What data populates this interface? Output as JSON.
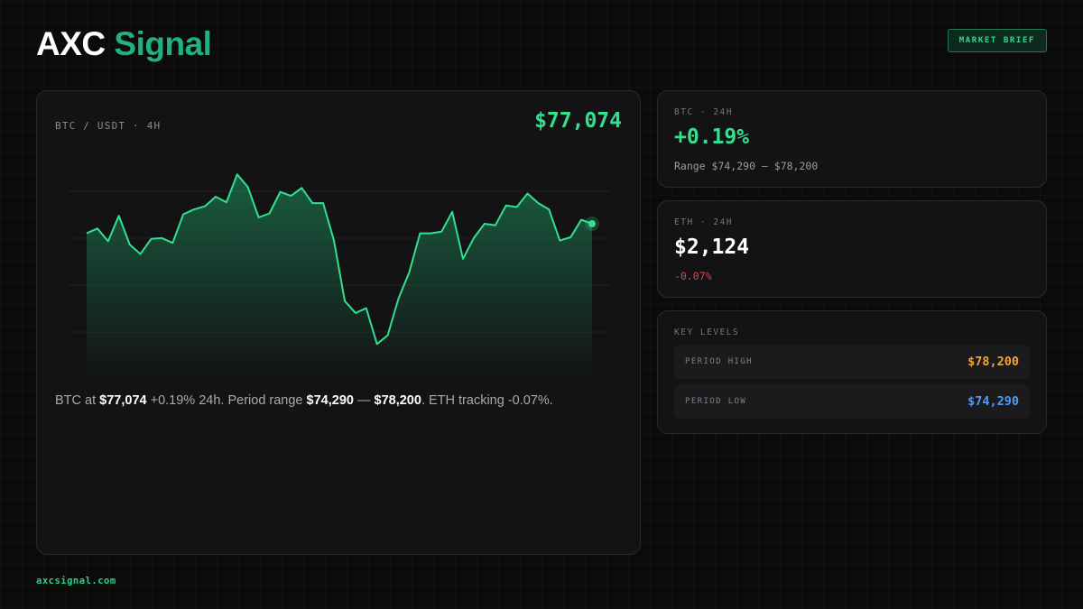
{
  "brand": {
    "word1": "AXC",
    "word2": "Signal"
  },
  "badge": "MARKET BRIEF",
  "chart_panel": {
    "pair_label": "BTC / USDT · 4H",
    "price": "$77,074",
    "summary": {
      "t1": "BTC at ",
      "price": "$77,074",
      "t2": " +0.19% 24h. Period range ",
      "low": "$74,290",
      "t3": " — ",
      "high": "$78,200",
      "t4": ". ETH tracking -0.07%."
    }
  },
  "chart_data": {
    "type": "area",
    "series": [
      {
        "values": [
          75900,
          75960,
          75800,
          76120,
          75760,
          75640,
          75830,
          75840,
          75780,
          76140,
          76200,
          76240,
          76360,
          76290,
          76640,
          76480,
          76100,
          76150,
          76420,
          76370,
          76470,
          76280,
          76280,
          75810,
          75050,
          74900,
          74960,
          74510,
          74620,
          75080,
          75410,
          75900,
          75900,
          75920,
          76170,
          75580,
          75840,
          76020,
          76000,
          76250,
          76230,
          76400,
          76280,
          76200,
          75810,
          75850,
          76070,
          76020
        ]
      }
    ],
    "color": "#33e08e",
    "grid": true,
    "last_point_marker": true
  },
  "btc_card": {
    "label": "BTC · 24H",
    "change": "+0.19%",
    "range": "Range $74,290 – $78,200",
    "change_color": "#33e08e"
  },
  "eth_card": {
    "label": "ETH · 24H",
    "price": "$2,124",
    "change": "-0.07%",
    "change_color": "#e0424f"
  },
  "levels": {
    "title": "KEY LEVELS",
    "rows": [
      {
        "name": "PERIOD HIGH",
        "value": "$78,200",
        "color": "#f2a533"
      },
      {
        "name": "PERIOD LOW",
        "value": "$74,290",
        "color": "#4f9cf2"
      }
    ]
  },
  "footer": "axcsignal.com"
}
